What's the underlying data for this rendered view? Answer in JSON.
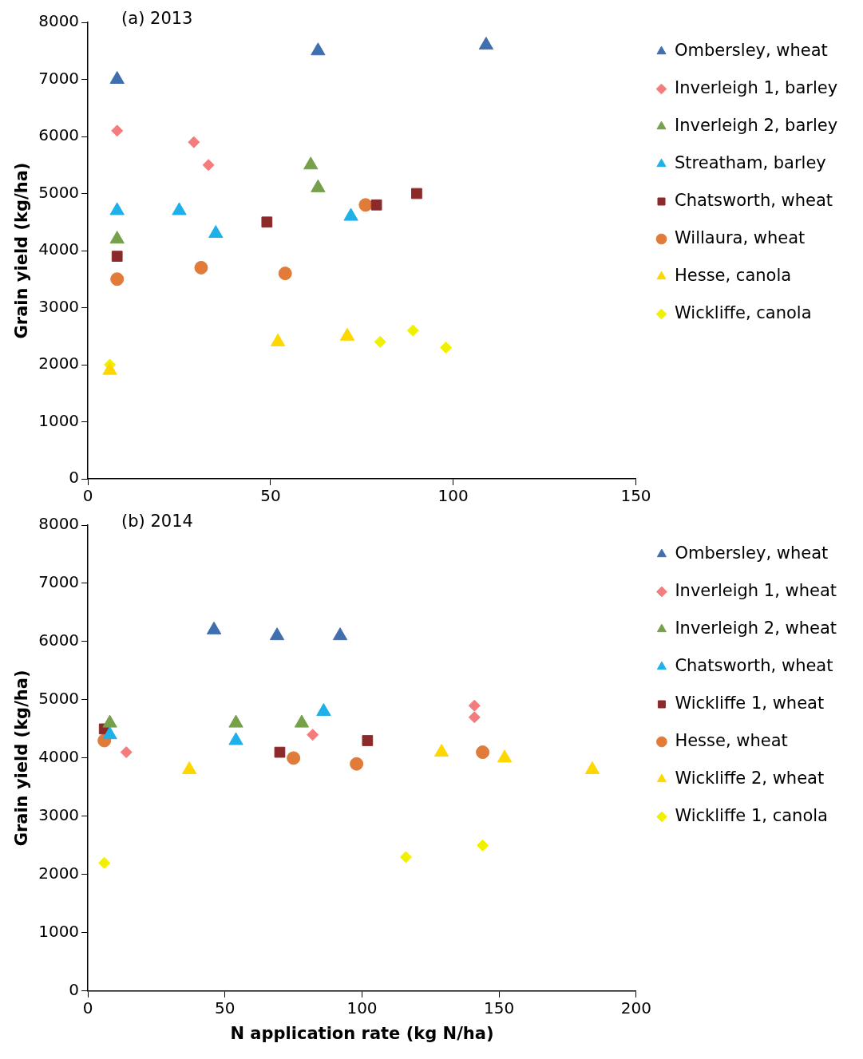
{
  "chart_data": [
    {
      "type": "scatter",
      "title": "(a) 2013",
      "ylabel": "Grain yield (kg/ha)",
      "xlim": [
        0,
        150
      ],
      "xticks": [
        0,
        50,
        100,
        150
      ],
      "ylim": [
        0,
        8000
      ],
      "yticks": [
        0,
        1000,
        2000,
        3000,
        4000,
        5000,
        6000,
        7000,
        8000
      ],
      "grid": false,
      "legend": "right",
      "series": [
        {
          "name": "Ombersley, wheat",
          "color": "#3f6fae",
          "marker": "triangle",
          "x": [
            8,
            63,
            109
          ],
          "values": [
            7000,
            7500,
            7600
          ]
        },
        {
          "name": "Inverleigh 1, barley",
          "color": "#f47c7c",
          "marker": "diamond",
          "x": [
            8,
            29,
            33
          ],
          "values": [
            6100,
            5900,
            5500
          ]
        },
        {
          "name": "Inverleigh 2, barley",
          "color": "#77a04a",
          "marker": "triangle",
          "x": [
            8,
            61,
            63
          ],
          "values": [
            4200,
            5500,
            5100
          ]
        },
        {
          "name": "Streatham, barley",
          "color": "#1eb0e8",
          "marker": "triangle",
          "x": [
            8,
            25,
            35,
            72
          ],
          "values": [
            4700,
            4700,
            4300,
            4600
          ]
        },
        {
          "name": "Chatsworth, wheat",
          "color": "#8b2a2a",
          "marker": "square",
          "x": [
            8,
            49,
            79,
            90
          ],
          "values": [
            3900,
            4500,
            4800,
            5000
          ]
        },
        {
          "name": "Willaura, wheat",
          "color": "#e07b39",
          "marker": "circle",
          "x": [
            8,
            31,
            54,
            76
          ],
          "values": [
            3500,
            3700,
            3600,
            4800
          ]
        },
        {
          "name": "Hesse, canola",
          "color": "#ffd700",
          "marker": "triangle",
          "x": [
            6,
            52,
            71
          ],
          "values": [
            1900,
            2400,
            2500
          ]
        },
        {
          "name": "Wickliffe, canola",
          "color": "#f0f000",
          "marker": "diamond",
          "x": [
            6,
            80,
            89,
            98
          ],
          "values": [
            2000,
            2400,
            2600,
            2300
          ]
        }
      ]
    },
    {
      "type": "scatter",
      "title": "(b) 2014",
      "xlabel": "N application rate (kg N/ha)",
      "ylabel": "Grain yield (kg/ha)",
      "xlim": [
        0,
        200
      ],
      "xticks": [
        0,
        50,
        100,
        150,
        200
      ],
      "ylim": [
        0,
        8000
      ],
      "yticks": [
        0,
        1000,
        2000,
        3000,
        4000,
        5000,
        6000,
        7000,
        8000
      ],
      "grid": false,
      "legend": "right",
      "series": [
        {
          "name": "Ombersley, wheat",
          "color": "#3f6fae",
          "marker": "triangle",
          "x": [
            46,
            69,
            92
          ],
          "values": [
            6200,
            6100,
            6100
          ]
        },
        {
          "name": "Inverleigh 1, wheat",
          "color": "#f47c7c",
          "marker": "diamond",
          "x": [
            14,
            82,
            141,
            141
          ],
          "values": [
            4100,
            4400,
            4900,
            4700
          ]
        },
        {
          "name": "Inverleigh 2, wheat",
          "color": "#77a04a",
          "marker": "triangle",
          "x": [
            8,
            54,
            78
          ],
          "values": [
            4600,
            4600,
            4600
          ]
        },
        {
          "name": "Chatsworth, wheat",
          "color": "#1eb0e8",
          "marker": "triangle",
          "x": [
            8,
            54,
            86
          ],
          "values": [
            4400,
            4300,
            4800
          ]
        },
        {
          "name": "Wickliffe 1, wheat",
          "color": "#8b2a2a",
          "marker": "square",
          "x": [
            6,
            70,
            102
          ],
          "values": [
            4500,
            4100,
            4300
          ]
        },
        {
          "name": "Hesse, wheat",
          "color": "#e07b39",
          "marker": "circle",
          "x": [
            6,
            75,
            98,
            144
          ],
          "values": [
            4300,
            4000,
            3900,
            4100
          ]
        },
        {
          "name": "Wickliffe 2, wheat",
          "color": "#ffd700",
          "marker": "triangle",
          "x": [
            37,
            129,
            152,
            184
          ],
          "values": [
            3800,
            4100,
            4000,
            3800
          ]
        },
        {
          "name": "Wickliffe 1, canola",
          "color": "#f0f000",
          "marker": "diamond",
          "x": [
            6,
            116,
            144
          ],
          "values": [
            2200,
            2300,
            2500
          ]
        }
      ]
    }
  ]
}
